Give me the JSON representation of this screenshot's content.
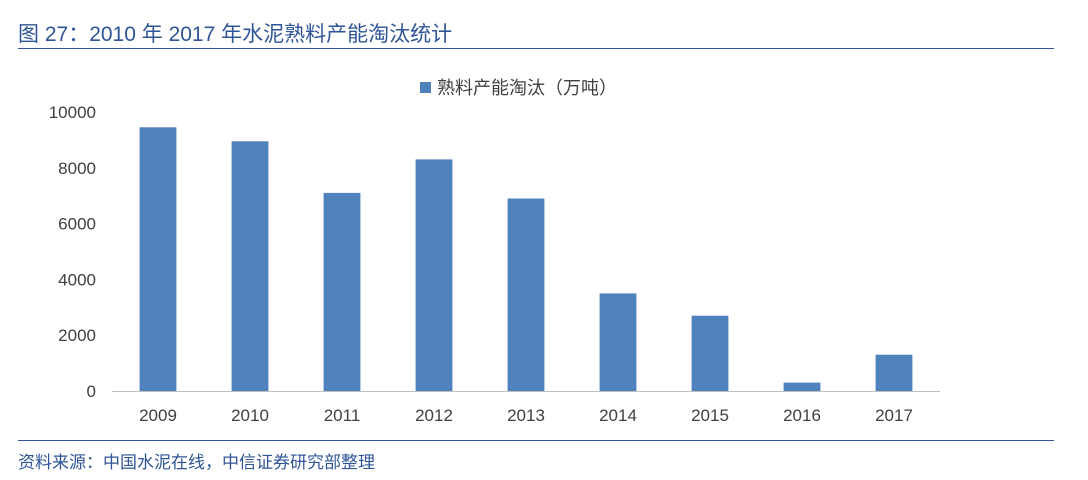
{
  "figure": {
    "title": "图 27：2010 年 2017 年水泥熟料产能淘汰统计",
    "source": "资料来源：中国水泥在线，中信证券研究部整理"
  },
  "colors": {
    "accent": "#2f5597",
    "bar": "#4f81bd",
    "axis": "#bfbfbf",
    "text": "#404040"
  },
  "chart_data": {
    "type": "bar",
    "categories": [
      "2009",
      "2010",
      "2011",
      "2012",
      "2013",
      "2014",
      "2015",
      "2016",
      "2017"
    ],
    "series": [
      {
        "name": "熟料产能淘汰（万吨）",
        "values": [
          9450,
          8950,
          7100,
          8300,
          6900,
          3500,
          2700,
          300,
          1300
        ]
      }
    ],
    "yticks": [
      "0",
      "2000",
      "4000",
      "6000",
      "8000",
      "10000"
    ],
    "ylim": [
      0,
      10000
    ],
    "legend": "top-center",
    "grid": false
  }
}
